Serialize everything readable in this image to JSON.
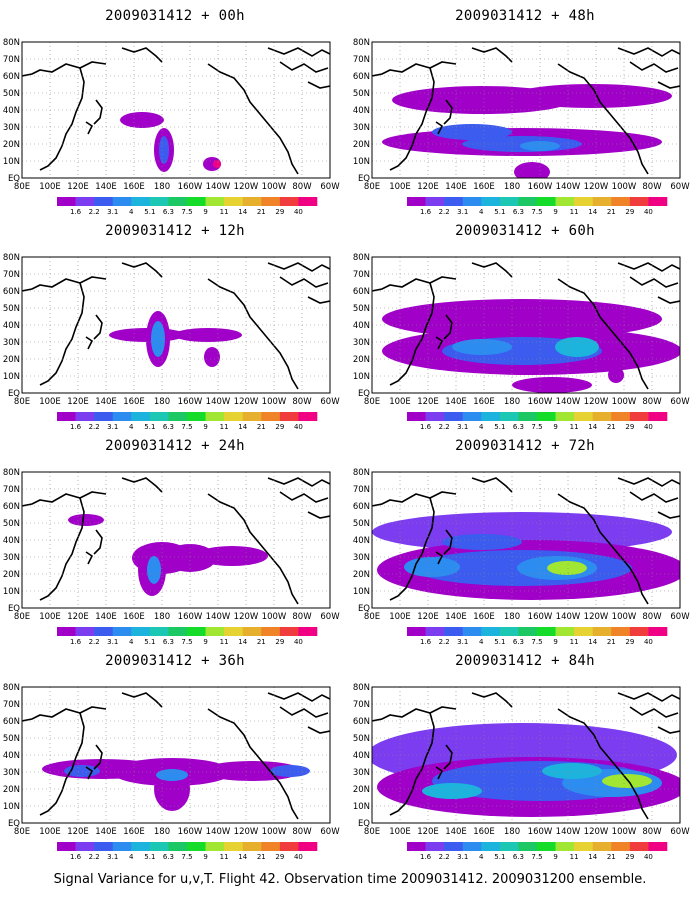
{
  "footer": "Signal Variance for u,v,T. Flight 42. Observation time 2009031412. 2009031200 ensemble.",
  "axes": {
    "lon_labels": [
      "80E",
      "100E",
      "120E",
      "140E",
      "160E",
      "180",
      "160W",
      "140W",
      "120W",
      "100W",
      "80W",
      "60W"
    ],
    "lat_labels": [
      "80N",
      "70N",
      "60N",
      "50N",
      "40N",
      "30N",
      "20N",
      "10N",
      "EQ"
    ]
  },
  "colorbar": {
    "labels": [
      "1.6",
      "2.2",
      "3.1",
      "4",
      "5.1",
      "6.3",
      "7.5",
      "9",
      "11",
      "14",
      "21",
      "29",
      "40"
    ],
    "colors": [
      "#a000c8",
      "#7c3cf0",
      "#3c5cf0",
      "#2c8cf0",
      "#1cb4dc",
      "#1cc8b4",
      "#1cc864",
      "#14dc28",
      "#a0e632",
      "#e6d232",
      "#e6af2d",
      "#f08228",
      "#f03c3c",
      "#f00082"
    ]
  },
  "panels": [
    {
      "id": "p00",
      "title": "2009031412 + 00h",
      "column": 0,
      "row": 0
    },
    {
      "id": "p12",
      "title": "2009031412 + 12h",
      "column": 0,
      "row": 1
    },
    {
      "id": "p24",
      "title": "2009031412 + 24h",
      "column": 0,
      "row": 2
    },
    {
      "id": "p36",
      "title": "2009031412 + 36h",
      "column": 0,
      "row": 3
    },
    {
      "id": "p48",
      "title": "2009031412 + 48h",
      "column": 1,
      "row": 0
    },
    {
      "id": "p60",
      "title": "2009031412 + 60h",
      "column": 1,
      "row": 1
    },
    {
      "id": "p72",
      "title": "2009031412 + 72h",
      "column": 1,
      "row": 2
    },
    {
      "id": "p84",
      "title": "2009031412 + 84h",
      "column": 1,
      "row": 3
    }
  ]
}
